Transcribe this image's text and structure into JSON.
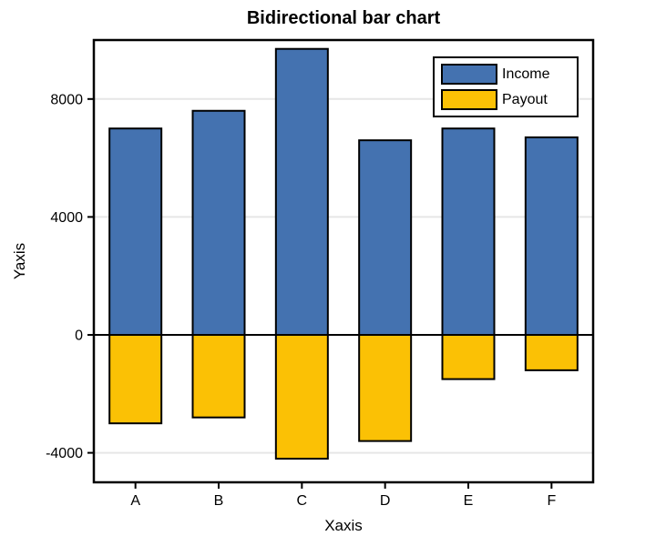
{
  "chart_data": {
    "type": "bar",
    "subtype": "bidirectional",
    "title": "Bidirectional bar chart",
    "xlabel": "Xaxis",
    "ylabel": "Yaxis",
    "categories": [
      "A",
      "B",
      "C",
      "D",
      "E",
      "F"
    ],
    "series": [
      {
        "name": "Income",
        "color": "#4472B0",
        "values": [
          7000,
          7600,
          9700,
          6600,
          7000,
          6700
        ]
      },
      {
        "name": "Payout",
        "color": "#FBC105",
        "values": [
          -3000,
          -2800,
          -4200,
          -3600,
          -1500,
          -1200
        ]
      }
    ],
    "ylim": [
      -5000,
      10000
    ],
    "yticks": [
      -4000,
      0,
      4000,
      8000
    ],
    "grid": true,
    "grid_color": "#E6E6E6",
    "axis_color": "#000000",
    "legend_position": "upper right",
    "legend_entries": [
      "Income",
      "Payout"
    ]
  }
}
